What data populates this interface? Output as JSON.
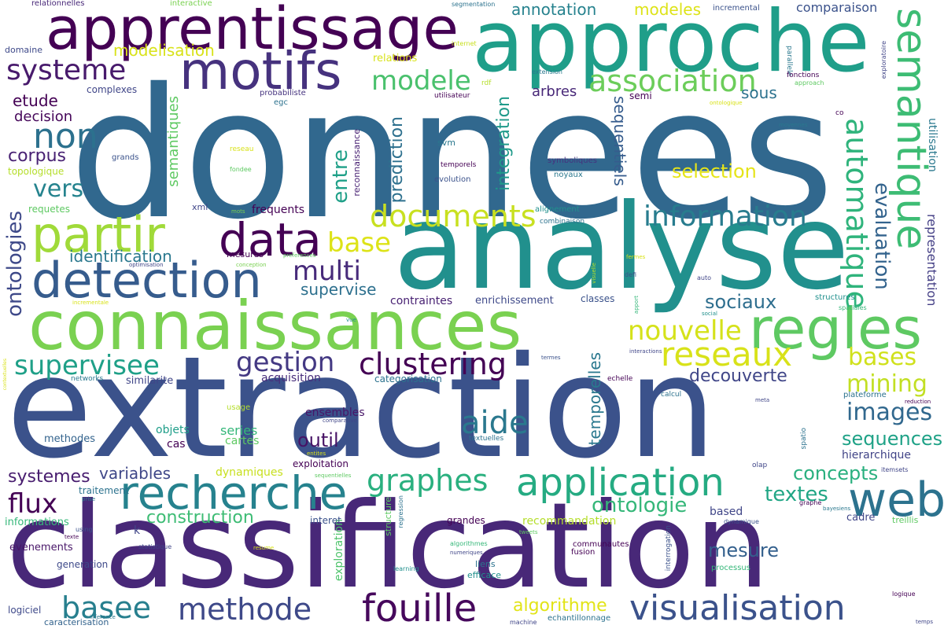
{
  "palette": [
    "#440154",
    "#472c7a",
    "#3b518b",
    "#2c718e",
    "#21908d",
    "#27ad81",
    "#5cc863",
    "#aadc32",
    "#fde725"
  ],
  "words": [
    {
      "text": "donnees",
      "color": "#31688e"
    },
    {
      "text": "extraction",
      "color": "#3b528b"
    },
    {
      "text": "classification",
      "color": "#482878"
    },
    {
      "text": "analyse",
      "color": "#21908d"
    },
    {
      "text": "approche",
      "color": "#1f9e89"
    },
    {
      "text": "connaissances",
      "color": "#7ad151"
    },
    {
      "text": "apprentissage",
      "color": "#440154"
    },
    {
      "text": "regles",
      "color": "#5ec962"
    },
    {
      "text": "semantique",
      "color": "#3dbc74"
    },
    {
      "text": "motifs",
      "color": "#46327e"
    },
    {
      "text": "web",
      "color": "#2c728e"
    },
    {
      "text": "recherche",
      "color": "#26828e"
    },
    {
      "text": "detection",
      "color": "#365c8d"
    },
    {
      "text": "partir",
      "color": "#a0da39"
    },
    {
      "text": "application",
      "color": "#25ab82"
    },
    {
      "text": "data",
      "color": "#440154"
    },
    {
      "text": "automatique",
      "color": "#2fb47c"
    },
    {
      "text": "visualisation",
      "color": "#3b528b"
    },
    {
      "text": "fouille",
      "color": "#46085c"
    },
    {
      "text": "non",
      "color": "#2c718e"
    },
    {
      "text": "reseaux",
      "color": "#d8e219"
    },
    {
      "text": "association",
      "color": "#6ccd5a"
    },
    {
      "text": "information",
      "color": "#287c8e"
    },
    {
      "text": "documents",
      "color": "#c8e020"
    },
    {
      "text": "clustering",
      "color": "#440154"
    },
    {
      "text": "gestion",
      "color": "#443983"
    },
    {
      "text": "supervisee",
      "color": "#1fa088"
    },
    {
      "text": "methode",
      "color": "#3e4989"
    },
    {
      "text": "basee",
      "color": "#277f8e"
    },
    {
      "text": "graphes",
      "color": "#2ab07f"
    },
    {
      "text": "systeme",
      "color": "#481a6c"
    },
    {
      "text": "modele",
      "color": "#4ac16d"
    },
    {
      "text": "evaluation",
      "color": "#33638d"
    },
    {
      "text": "nouvelle",
      "color": "#d5e21a"
    },
    {
      "text": "aide",
      "color": "#2a788e"
    },
    {
      "text": "multi",
      "color": "#472a7a"
    },
    {
      "text": "images",
      "color": "#31688e"
    },
    {
      "text": "ontologies",
      "color": "#3e4989"
    },
    {
      "text": "base",
      "color": "#dde318"
    },
    {
      "text": "algorithme",
      "color": "#e2e418"
    },
    {
      "text": "mining",
      "color": "#c2df23"
    },
    {
      "text": "bases",
      "color": "#d0e11c"
    },
    {
      "text": "construction",
      "color": "#3dbc74"
    },
    {
      "text": "ontologie",
      "color": "#35b779"
    },
    {
      "text": "textes",
      "color": "#21a685"
    },
    {
      "text": "sequences",
      "color": "#1fa287"
    },
    {
      "text": "entre",
      "color": "#1fa088"
    },
    {
      "text": "flux",
      "color": "#440154"
    },
    {
      "text": "integration",
      "color": "#1f9a8a"
    },
    {
      "text": "prediction",
      "color": "#2d708e"
    },
    {
      "text": "selection",
      "color": "#e5e419"
    },
    {
      "text": "decouverte",
      "color": "#404688"
    },
    {
      "text": "vers",
      "color": "#25838e"
    },
    {
      "text": "outil",
      "color": "#471365"
    },
    {
      "text": "sociaux",
      "color": "#2e6e8e"
    },
    {
      "text": "concepts",
      "color": "#2ab07f"
    },
    {
      "text": "mesure",
      "color": "#34608d"
    },
    {
      "text": "semantiques",
      "color": "#5ec962"
    },
    {
      "text": "identification",
      "color": "#2a788e"
    },
    {
      "text": "systemes",
      "color": "#481d6f"
    },
    {
      "text": "variables",
      "color": "#3f4788"
    },
    {
      "text": "corpus",
      "color": "#482173"
    },
    {
      "text": "etude",
      "color": "#440154"
    },
    {
      "text": "decision",
      "color": "#46075a"
    },
    {
      "text": "temporelles",
      "color": "#2a788e"
    },
    {
      "text": "sequentiels",
      "color": "#365c8d"
    },
    {
      "text": "supervise",
      "color": "#2d708e"
    },
    {
      "text": "representation",
      "color": "#433e85"
    },
    {
      "text": "annotation",
      "color": "#26828e"
    },
    {
      "text": "modeles",
      "color": "#dde318"
    },
    {
      "text": "comparaison",
      "color": "#3b528b"
    },
    {
      "text": "modelisation",
      "color": "#d8e219"
    },
    {
      "text": "utilisation",
      "color": "#2a788e"
    },
    {
      "text": "sous",
      "color": "#2c728e"
    },
    {
      "text": "arbres",
      "color": "#482878"
    },
    {
      "text": "series",
      "color": "#35b779"
    },
    {
      "text": "hierarchique",
      "color": "#414487"
    },
    {
      "text": "exploration",
      "color": "#4ec36b"
    },
    {
      "text": "cartes",
      "color": "#5ec962"
    },
    {
      "text": "recommandation",
      "color": "#b5de2b"
    },
    {
      "text": "frequents",
      "color": "#440154"
    },
    {
      "text": "contraintes",
      "color": "#482173"
    },
    {
      "text": "enrichissement",
      "color": "#3e4989"
    },
    {
      "text": "acquisition",
      "color": "#472d7b"
    },
    {
      "text": "categorisation",
      "color": "#2c728e"
    },
    {
      "text": "similarite",
      "color": "#404688"
    },
    {
      "text": "ensembles",
      "color": "#481668"
    },
    {
      "text": "objets",
      "color": "#1f9e89"
    },
    {
      "text": "methodes",
      "color": "#33638d"
    },
    {
      "text": "cas",
      "color": "#440154"
    },
    {
      "text": "dynamiques",
      "color": "#c8e020"
    },
    {
      "text": "exploitation",
      "color": "#440154"
    },
    {
      "text": "traitement",
      "color": "#2c728e"
    },
    {
      "text": "informations",
      "color": "#35b779"
    },
    {
      "text": "evenements",
      "color": "#481668"
    },
    {
      "text": "generation",
      "color": "#3e4989"
    },
    {
      "text": "logiciel",
      "color": "#3e4989"
    },
    {
      "text": "caracterisation",
      "color": "#33638d"
    },
    {
      "text": "complexes",
      "color": "#404688"
    },
    {
      "text": "topologique",
      "color": "#b5de2b"
    },
    {
      "text": "requetes",
      "color": "#5ec962"
    },
    {
      "text": "domaine",
      "color": "#3e4989"
    },
    {
      "text": "relationnelles",
      "color": "#482878"
    },
    {
      "text": "interactive",
      "color": "#7ad151"
    },
    {
      "text": "relations",
      "color": "#d8e219"
    },
    {
      "text": "probabiliste",
      "color": "#46337f"
    },
    {
      "text": "egc",
      "color": "#2c728e"
    },
    {
      "text": "grands",
      "color": "#3b528b"
    },
    {
      "text": "svm",
      "color": "#2a788e"
    },
    {
      "text": "xml",
      "color": "#404688"
    },
    {
      "text": "reconnaissance",
      "color": "#482173"
    },
    {
      "text": "symboliques",
      "color": "#46327e"
    },
    {
      "text": "noyaux",
      "color": "#2a788e"
    },
    {
      "text": "temporels",
      "color": "#440154"
    },
    {
      "text": "evolution",
      "color": "#3b528b"
    },
    {
      "text": "alignement",
      "color": "#21908d"
    },
    {
      "text": "combinaison",
      "color": "#2c728e"
    },
    {
      "text": "classes",
      "color": "#3b528b"
    },
    {
      "text": "semi",
      "color": "#440154"
    },
    {
      "text": "utilisateur",
      "color": "#440154"
    },
    {
      "text": "rdf",
      "color": "#b5de2b"
    },
    {
      "text": "internet",
      "color": "#c8e020"
    },
    {
      "text": "segmentation",
      "color": "#2c728e"
    },
    {
      "text": "incremental",
      "color": "#3b528b"
    },
    {
      "text": "parallele",
      "color": "#2a788e"
    },
    {
      "text": "fonctions",
      "color": "#440154"
    },
    {
      "text": "approach",
      "color": "#5ec962"
    },
    {
      "text": "extension",
      "color": "#2a788e"
    },
    {
      "text": "exploratoire",
      "color": "#414487"
    },
    {
      "text": "ontologique",
      "color": "#d8e219"
    },
    {
      "text": "co",
      "color": "#440154"
    },
    {
      "text": "moyennes",
      "color": "#2a788e"
    },
    {
      "text": "reseau",
      "color": "#d8e219"
    },
    {
      "text": "fondee",
      "color": "#5ec962"
    },
    {
      "text": "mots",
      "color": "#7ad151"
    },
    {
      "text": "mesures",
      "color": "#440154"
    },
    {
      "text": "preferences",
      "color": "#5ec962"
    },
    {
      "text": "optimisation",
      "color": "#404688"
    },
    {
      "text": "conception",
      "color": "#7ad151"
    },
    {
      "text": "incrementale",
      "color": "#d8e219"
    },
    {
      "text": "vue",
      "color": "#21908d"
    },
    {
      "text": "networks",
      "color": "#2a788e"
    },
    {
      "text": "usage",
      "color": "#b5de2b"
    },
    {
      "text": "comparative",
      "color": "#404688"
    },
    {
      "text": "entites",
      "color": "#d8e219"
    },
    {
      "text": "sequentielles",
      "color": "#5ec962"
    },
    {
      "text": "prise",
      "color": "#2a788e"
    },
    {
      "text": "using",
      "color": "#3b528b"
    },
    {
      "text": "texte",
      "color": "#440154"
    },
    {
      "text": "statistique",
      "color": "#404688"
    },
    {
      "text": "resume",
      "color": "#d8e219"
    },
    {
      "text": "k",
      "color": "#404688"
    },
    {
      "text": "contextuelles",
      "color": "#d8e219"
    },
    {
      "text": "interet",
      "color": "#3b528b"
    },
    {
      "text": "grandes",
      "color": "#440154"
    },
    {
      "text": "structure",
      "color": "#5ec962"
    },
    {
      "text": "regression",
      "color": "#2c728e"
    },
    {
      "text": "learning",
      "color": "#21908d"
    },
    {
      "text": "numeriques",
      "color": "#404688"
    },
    {
      "text": "algorithmes",
      "color": "#35b779"
    },
    {
      "text": "liens",
      "color": "#2c728e"
    },
    {
      "text": "efficace",
      "color": "#21908d"
    },
    {
      "text": "inference",
      "color": "#2a788e"
    },
    {
      "text": "machine",
      "color": "#404688"
    },
    {
      "text": "echantillonnage",
      "color": "#2c728e"
    },
    {
      "text": "temps",
      "color": "#404688"
    },
    {
      "text": "logique",
      "color": "#440154"
    },
    {
      "text": "processus",
      "color": "#35b779"
    },
    {
      "text": "interrogation",
      "color": "#3b528b"
    },
    {
      "text": "fusion",
      "color": "#440154"
    },
    {
      "text": "communautes",
      "color": "#440154"
    },
    {
      "text": "tweets",
      "color": "#5ec962"
    },
    {
      "text": "dynamique",
      "color": "#3b528b"
    },
    {
      "text": "based",
      "color": "#404688"
    },
    {
      "text": "cadre",
      "color": "#404688"
    },
    {
      "text": "treillis",
      "color": "#5ec962"
    },
    {
      "text": "bayesiens",
      "color": "#2a788e"
    },
    {
      "text": "graphe",
      "color": "#440154"
    },
    {
      "text": "olap",
      "color": "#404688"
    },
    {
      "text": "itemsets",
      "color": "#404688"
    },
    {
      "text": "spatio",
      "color": "#2c728e"
    },
    {
      "text": "plateforme",
      "color": "#2c728e"
    },
    {
      "text": "reduction",
      "color": "#440154"
    },
    {
      "text": "meta",
      "color": "#404688"
    },
    {
      "text": "calcul",
      "color": "#2c728e"
    },
    {
      "text": "echelle",
      "color": "#440154"
    },
    {
      "text": "textuelles",
      "color": "#2c728e"
    },
    {
      "text": "termes",
      "color": "#3b528b"
    },
    {
      "text": "interactions",
      "color": "#404688"
    },
    {
      "text": "social",
      "color": "#21908d"
    },
    {
      "text": "apport",
      "color": "#35b779"
    },
    {
      "text": "visuelle",
      "color": "#b5de2b"
    },
    {
      "text": "defi",
      "color": "#3b528b"
    },
    {
      "text": "fermes",
      "color": "#d8e219"
    },
    {
      "text": "auto",
      "color": "#404688"
    },
    {
      "text": "spatiales",
      "color": "#35b779"
    },
    {
      "text": "structures",
      "color": "#21908d"
    }
  ]
}
